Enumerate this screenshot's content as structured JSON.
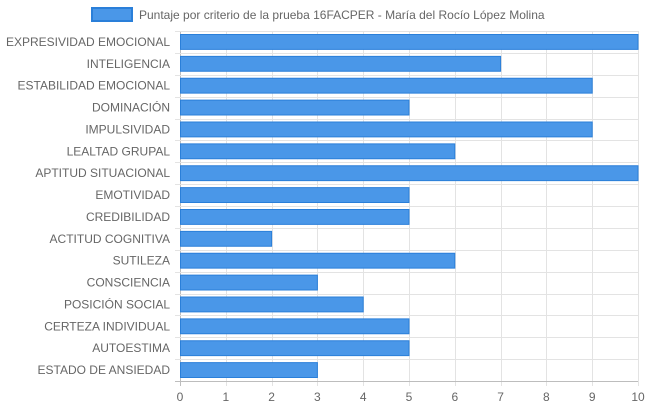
{
  "chart_data": {
    "type": "bar",
    "orientation": "horizontal",
    "legend": {
      "position": "top",
      "label": "Puntaje por criterio de la prueba 16FACPER - María del Rocío López Molina"
    },
    "series": [
      {
        "name": "Puntaje por criterio de la prueba 16FACPER - María del Rocío López Molina",
        "color": "#4a97e8",
        "border": "#2a7fd9"
      }
    ],
    "categories": [
      "EXPRESIVIDAD EMOCIONAL",
      "INTELIGENCIA",
      "ESTABILIDAD EMOCIONAL",
      "DOMINACIÓN",
      "IMPULSIVIDAD",
      "LEALTAD GRUPAL",
      "APTITUD SITUACIONAL",
      "EMOTIVIDAD",
      "CREDIBILIDAD",
      "ACTITUD COGNITIVA",
      "SUTILEZA",
      "CONSCIENCIA",
      "POSICIÓN SOCIAL",
      "CERTEZA INDIVIDUAL",
      "AUTOESTIMA",
      "ESTADO DE ANSIEDAD"
    ],
    "values": [
      10,
      7,
      9,
      5,
      9,
      6,
      10,
      5,
      5,
      2,
      6,
      3,
      4,
      5,
      5,
      3
    ],
    "xlim": [
      0,
      10
    ],
    "xticks": [
      "0",
      "1",
      "2",
      "3",
      "4",
      "5",
      "6",
      "7",
      "8",
      "9",
      "10"
    ],
    "grid": true
  }
}
